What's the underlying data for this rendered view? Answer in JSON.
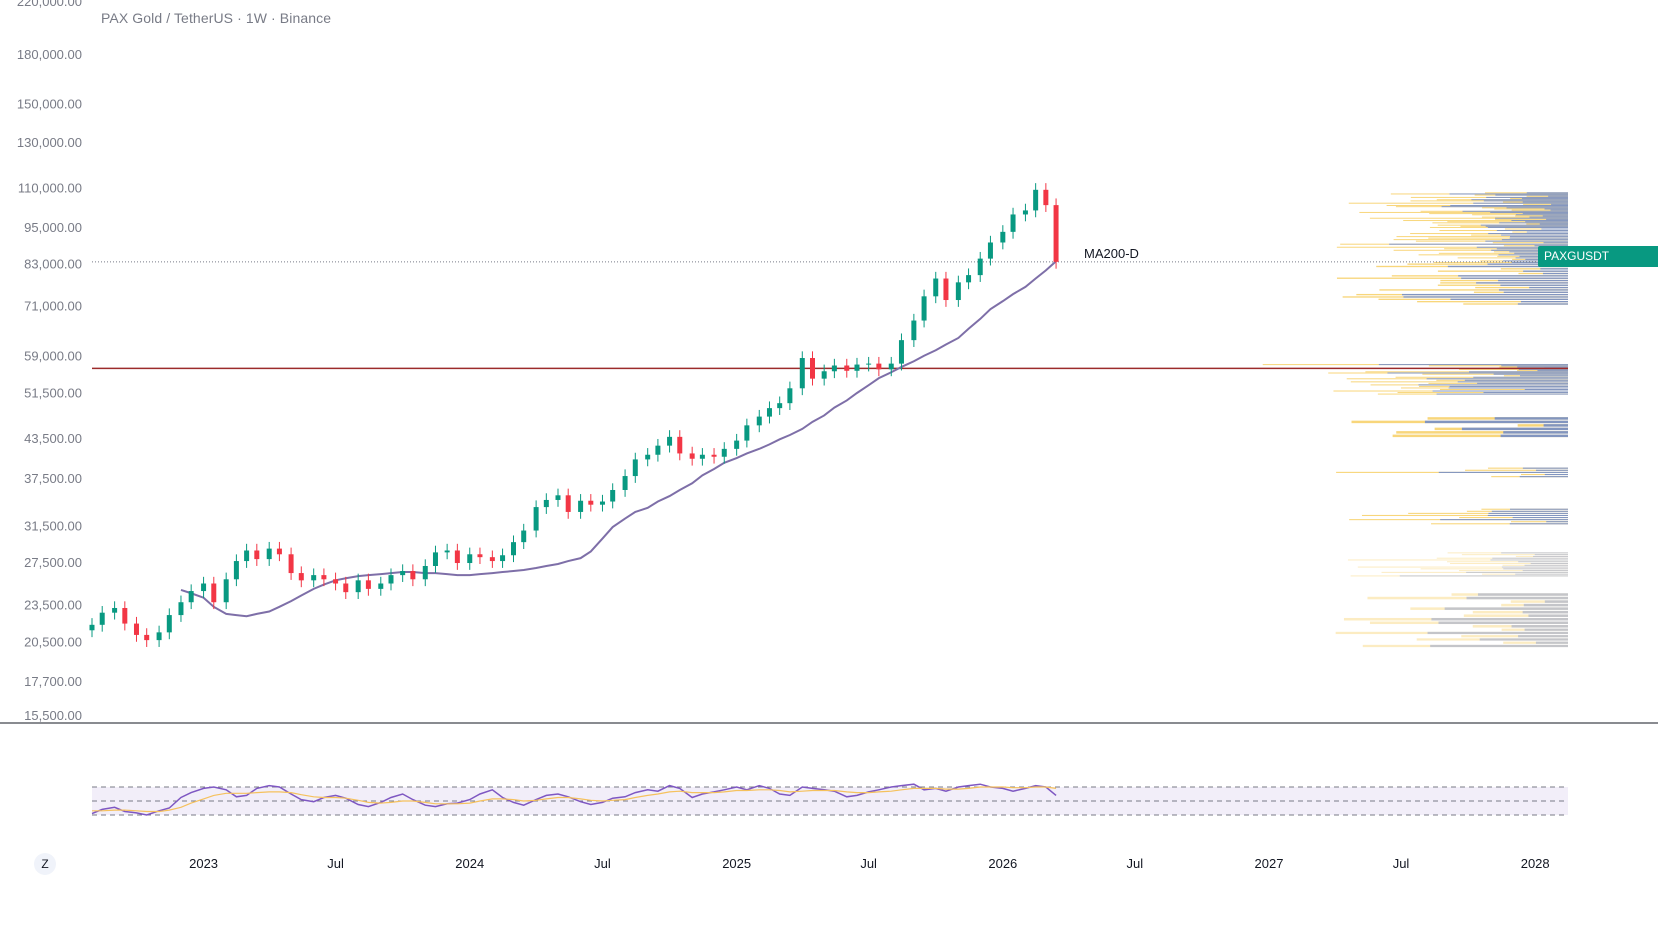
{
  "chart": {
    "title": "PAX Gold / TetherUS · 1W · Binance",
    "z_label": "Z",
    "ma_label": "MA200-D",
    "price_tag": "PAXGUSDT",
    "colors": {
      "up": "#089981",
      "down": "#f23645",
      "ma": "#7e6fa8",
      "rsi": "#7e57c2",
      "rsi_ma": "#f5c15d",
      "hline": "#9c2b2b",
      "vp_up": "#f5c84f",
      "vp_down": "#5b7fd6"
    }
  },
  "chart_data": [
    {
      "type": "candlestick",
      "ylim": [
        15500,
        220000
      ],
      "yscale": "log",
      "yticks": [
        "220,000.00",
        "180,000.00",
        "150,000.00",
        "130,000.00",
        "110,000.00",
        "95,000.00",
        "83,000.00",
        "71,000.00",
        "59,000.00",
        "51,500.00",
        "43,500.00",
        "37,500.00",
        "31,500.00",
        "27,500.00",
        "23,500.00",
        "20,500.00",
        "17,700.00",
        "15,500.00"
      ],
      "xticks": [
        "2023",
        "Jul",
        "2024",
        "Jul",
        "2025",
        "Jul",
        "2026",
        "Jul",
        "2027",
        "Jul",
        "2028"
      ],
      "xlim": [
        "2022-08-01",
        "2028-02-15"
      ],
      "last_price": 83500,
      "horizontal_line": 56300,
      "series": [
        {
          "kind": "close",
          "x": [
            "2022-08-01",
            "2022-08-15",
            "2022-09-01",
            "2022-09-15",
            "2022-10-01",
            "2022-10-15",
            "2022-11-01",
            "2022-11-15",
            "2022-12-01",
            "2022-12-15",
            "2023-01-01",
            "2023-01-15",
            "2023-02-01",
            "2023-02-15",
            "2023-03-01",
            "2023-03-15",
            "2023-04-01",
            "2023-04-15",
            "2023-05-01",
            "2023-05-15",
            "2023-06-01",
            "2023-06-15",
            "2023-07-01",
            "2023-07-15",
            "2023-08-01",
            "2023-08-15",
            "2023-09-01",
            "2023-09-15",
            "2023-10-01",
            "2023-10-15",
            "2023-11-01",
            "2023-11-15",
            "2023-12-01",
            "2023-12-15",
            "2024-01-01",
            "2024-01-15",
            "2024-02-01",
            "2024-02-15",
            "2024-03-01",
            "2024-03-15",
            "2024-04-01",
            "2024-04-15",
            "2024-05-01",
            "2024-05-15",
            "2024-06-01",
            "2024-06-15",
            "2024-07-01",
            "2024-07-15",
            "2024-08-01",
            "2024-08-15",
            "2024-09-01",
            "2024-09-15",
            "2024-10-01",
            "2024-10-15",
            "2024-11-01",
            "2024-11-15",
            "2024-12-01",
            "2024-12-15",
            "2025-01-01",
            "2025-01-15",
            "2025-02-01",
            "2025-02-15",
            "2025-03-01",
            "2025-03-15",
            "2025-04-01",
            "2025-04-15",
            "2025-05-01",
            "2025-05-15",
            "2025-06-01",
            "2025-06-15",
            "2025-07-01",
            "2025-07-15",
            "2025-08-01",
            "2025-08-15",
            "2025-09-01",
            "2025-09-15",
            "2025-10-01",
            "2025-10-15",
            "2025-11-01",
            "2025-11-15",
            "2025-12-01",
            "2025-12-15",
            "2026-01-01",
            "2026-01-15",
            "2026-02-01",
            "2026-02-15",
            "2026-03-01",
            "2026-03-15"
          ],
          "values": [
            21800,
            22800,
            23200,
            21900,
            21000,
            20600,
            21200,
            22600,
            23700,
            24700,
            25400,
            23700,
            25800,
            27600,
            28700,
            27800,
            28900,
            28300,
            26400,
            25700,
            26200,
            25800,
            25400,
            24600,
            25700,
            24900,
            25400,
            26200,
            26600,
            25800,
            27100,
            28500,
            28700,
            27400,
            28300,
            28000,
            27600,
            28200,
            29600,
            30900,
            33700,
            34600,
            35200,
            33100,
            34500,
            34000,
            34400,
            35900,
            37800,
            40200,
            40900,
            42300,
            43700,
            41100,
            40300,
            40900,
            40600,
            41800,
            43100,
            45600,
            47100,
            48600,
            49500,
            52300,
            58500,
            54200,
            55700,
            56900,
            55800,
            57100,
            57300,
            56100,
            57300,
            62500,
            67200,
            73500,
            78500,
            72500,
            77400,
            79500,
            84500,
            89700,
            93300,
            99500,
            101000,
            109000,
            103000,
            83500
          ]
        },
        {
          "kind": "ma200d",
          "values": [
            24800,
            24500,
            24100,
            23300,
            22700,
            22600,
            22500,
            22700,
            22900,
            23300,
            23800,
            24300,
            24900,
            25300,
            25700,
            25900,
            26100,
            26200,
            26300,
            26400,
            26500,
            26500,
            26400,
            26400,
            26300,
            26200,
            26200,
            26300,
            26400,
            26500,
            26600,
            26700,
            26900,
            27100,
            27300,
            27600,
            27900,
            28600,
            30000,
            31300,
            32300,
            33100,
            33600,
            34400,
            35100,
            35900,
            36800,
            37900,
            38800,
            39700,
            40400,
            41100,
            41800,
            42500,
            43300,
            44000,
            45000,
            46200,
            47300,
            48700,
            50000,
            51400,
            52900,
            54300,
            55500,
            56600,
            57800,
            59000,
            60200,
            61500,
            63000,
            65200,
            67600,
            70100,
            72200,
            74100,
            76100,
            78500,
            80900,
            83700
          ]
        }
      ]
    },
    {
      "type": "line",
      "title": "RSI",
      "ylim": [
        0,
        100
      ],
      "bands": [
        70,
        50,
        30
      ],
      "series": [
        {
          "name": "",
          "values": [
            32,
            38,
            41,
            35,
            33,
            30,
            36,
            40,
            55,
            62,
            68,
            70,
            66,
            56,
            58,
            68,
            72,
            70,
            60,
            52,
            49,
            55,
            58,
            54,
            45,
            42,
            48,
            55,
            60,
            52,
            44,
            42,
            46,
            47,
            52,
            60,
            66,
            55,
            48,
            44,
            52,
            58,
            60,
            56,
            49,
            45,
            48,
            54,
            56,
            62,
            66,
            64,
            72,
            68,
            55,
            60,
            63,
            66,
            70,
            66,
            72,
            68,
            60,
            58,
            70,
            68,
            66,
            64,
            56,
            58,
            63,
            66,
            70,
            72,
            74,
            66,
            68,
            64,
            70,
            72,
            74,
            70,
            68,
            64,
            68,
            72,
            70,
            58
          ]
        },
        {
          "name": "",
          "values": [
            36,
            36,
            37,
            37,
            36,
            35,
            35,
            37,
            41,
            47,
            53,
            58,
            61,
            61,
            61,
            62,
            63,
            63,
            62,
            59,
            56,
            55,
            55,
            54,
            51,
            48,
            47,
            48,
            50,
            50,
            48,
            46,
            46,
            46,
            47,
            50,
            53,
            53,
            52,
            50,
            51,
            53,
            55,
            55,
            53,
            51,
            50,
            51,
            52,
            55,
            58,
            60,
            63,
            64,
            62,
            62,
            62,
            63,
            65,
            65,
            66,
            66,
            65,
            63,
            64,
            65,
            65,
            65,
            63,
            62,
            62,
            63,
            64,
            66,
            68,
            68,
            68,
            67,
            67,
            68,
            70,
            70,
            70,
            69,
            69,
            70,
            70,
            68
          ]
        }
      ]
    }
  ]
}
